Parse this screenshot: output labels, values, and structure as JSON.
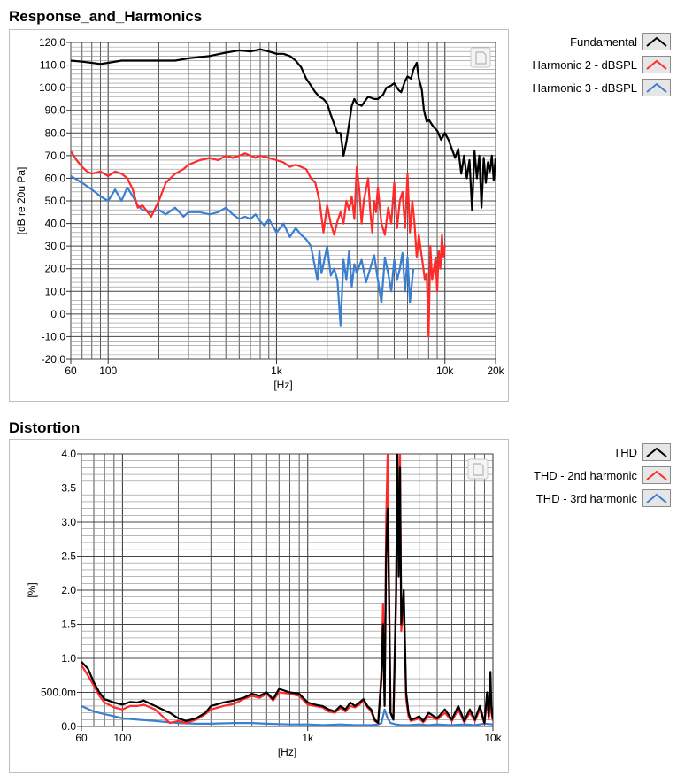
{
  "chart_data": [
    {
      "type": "line",
      "title": "Response_and_Harmonics",
      "xlabel": "[Hz]",
      "ylabel": "[dB re 20u Pa]",
      "xscale": "log",
      "xlim": [
        60,
        20000
      ],
      "ylim": [
        -20,
        120
      ],
      "xticks": [
        60,
        100,
        1000,
        10000,
        20000
      ],
      "xtick_labels": [
        "60",
        "100",
        "1k",
        "10k",
        "20k"
      ],
      "yticks": [
        -20,
        -10,
        0,
        10,
        20,
        30,
        40,
        50,
        60,
        70,
        80,
        90,
        100,
        110,
        120
      ],
      "ytick_labels": [
        "-20.0",
        "-10.0",
        "0.0",
        "10.0",
        "20.0",
        "30.0",
        "40.0",
        "50.0",
        "60.0",
        "70.0",
        "80.0",
        "90.0",
        "100.0",
        "110.0",
        "120.0"
      ],
      "grid": true,
      "legend_position": "right",
      "series": [
        {
          "name": "Fundamental",
          "color": "#000000",
          "x": [
            60,
            70,
            80,
            90,
            100,
            120,
            150,
            200,
            250,
            300,
            400,
            500,
            600,
            700,
            800,
            900,
            1000,
            1100,
            1200,
            1300,
            1400,
            1500,
            1600,
            1700,
            1800,
            1900,
            2000,
            2100,
            2200,
            2300,
            2400,
            2500,
            2600,
            2700,
            2800,
            2900,
            3000,
            3200,
            3500,
            3800,
            4000,
            4300,
            4500,
            4800,
            5000,
            5300,
            5500,
            5800,
            6000,
            6300,
            6500,
            6800,
            7000,
            7300,
            7500,
            7800,
            8000,
            8500,
            9000,
            9500,
            10000,
            10500,
            11000,
            11500,
            12000,
            12500,
            13000,
            13500,
            14000,
            14500,
            15000,
            15500,
            16000,
            16500,
            17000,
            17500,
            18000,
            18500,
            19000,
            19500,
            20000
          ],
          "y": [
            112,
            111.5,
            111,
            110.5,
            111,
            112,
            112,
            112,
            112,
            113,
            114,
            115.5,
            116.5,
            116,
            117,
            116,
            115,
            115,
            114,
            112,
            109,
            104,
            101,
            98,
            96,
            95,
            93,
            88,
            84,
            80,
            80,
            70,
            76,
            84,
            92,
            95,
            93,
            92,
            96,
            95,
            95,
            97,
            100,
            101,
            102,
            99,
            98,
            103,
            105,
            104,
            108,
            111,
            104,
            99,
            90,
            85,
            86,
            83,
            81,
            77,
            80,
            77,
            73,
            69,
            73,
            62,
            70,
            60,
            68,
            46,
            72,
            60,
            70,
            47,
            69,
            58,
            67,
            63,
            70,
            59,
            69
          ]
        },
        {
          "name": "Harmonic 2 - dBSPL",
          "color": "#ff2a2a",
          "x": [
            60,
            65,
            70,
            75,
            80,
            90,
            100,
            110,
            120,
            130,
            140,
            150,
            160,
            180,
            200,
            220,
            250,
            280,
            300,
            350,
            400,
            450,
            500,
            550,
            600,
            650,
            700,
            750,
            800,
            900,
            1000,
            1100,
            1200,
            1300,
            1400,
            1500,
            1600,
            1700,
            1800,
            1900,
            2000,
            2100,
            2200,
            2300,
            2400,
            2500,
            2600,
            2700,
            2800,
            2900,
            3000,
            3100,
            3200,
            3300,
            3400,
            3500,
            3600,
            3700,
            3800,
            3900,
            4000,
            4200,
            4400,
            4600,
            4800,
            5000,
            5200,
            5400,
            5600,
            5800,
            6000,
            6200,
            6400,
            6600,
            6800,
            7000,
            7200,
            7400,
            7600,
            7800,
            8000,
            8200,
            8400,
            8600,
            8800,
            9000,
            9200,
            9400,
            9600,
            9800,
            10000
          ],
          "y": [
            72,
            68,
            65,
            63,
            62,
            63,
            61,
            63,
            62,
            60,
            55,
            47,
            48,
            43,
            50,
            58,
            62,
            64,
            66,
            68,
            69,
            68,
            70,
            69,
            70,
            71,
            70,
            69,
            70,
            69,
            68,
            67,
            65,
            66,
            65,
            64,
            60,
            58,
            50,
            36,
            48,
            40,
            35,
            41,
            45,
            40,
            50,
            46,
            52,
            42,
            65,
            55,
            40,
            50,
            55,
            60,
            46,
            36,
            50,
            45,
            56,
            40,
            35,
            47,
            40,
            58,
            38,
            50,
            54,
            38,
            62,
            36,
            50,
            40,
            25,
            35,
            28,
            22,
            15,
            18,
            -10,
            30,
            15,
            20,
            25,
            10,
            28,
            20,
            35,
            25,
            30
          ]
        },
        {
          "name": "Harmonic 3 - dBSPL",
          "color": "#3a7fd0",
          "x": [
            60,
            70,
            80,
            90,
            100,
            110,
            120,
            130,
            140,
            150,
            160,
            180,
            200,
            220,
            250,
            280,
            300,
            350,
            400,
            450,
            500,
            550,
            600,
            650,
            700,
            750,
            800,
            850,
            900,
            1000,
            1100,
            1200,
            1300,
            1400,
            1500,
            1600,
            1700,
            1750,
            1800,
            1850,
            1900,
            2000,
            2100,
            2200,
            2300,
            2400,
            2500,
            2600,
            2700,
            2800,
            2900,
            3000,
            3200,
            3400,
            3600,
            3800,
            4000,
            4200,
            4400,
            4600,
            4800,
            5000,
            5200,
            5400,
            5600,
            5800,
            6000,
            6200,
            6500
          ],
          "y": [
            61,
            58,
            55,
            52,
            50,
            55,
            50,
            56,
            52,
            48,
            46,
            45,
            46,
            44,
            47,
            43,
            45,
            45,
            44,
            45,
            47,
            44,
            42,
            43,
            42,
            44,
            41,
            39,
            42,
            36,
            40,
            34,
            38,
            35,
            33,
            30,
            20,
            15,
            28,
            18,
            22,
            30,
            17,
            20,
            15,
            -5,
            24,
            15,
            28,
            12,
            22,
            18,
            24,
            14,
            20,
            26,
            15,
            5,
            25,
            18,
            10,
            24,
            15,
            20,
            27,
            10,
            25,
            5,
            20
          ]
        }
      ]
    },
    {
      "type": "line",
      "title": "Distortion",
      "xlabel": "[Hz]",
      "ylabel": "[%]",
      "xscale": "log",
      "xlim": [
        60,
        10000
      ],
      "ylim": [
        0,
        4
      ],
      "xticks": [
        60,
        100,
        1000,
        10000
      ],
      "xtick_labels": [
        "60",
        "100",
        "1k",
        "10k"
      ],
      "yticks": [
        0,
        0.5,
        1,
        1.5,
        2,
        2.5,
        3,
        3.5,
        4
      ],
      "ytick_labels": [
        "0.0",
        "500.0m",
        "1.0",
        "1.5",
        "2.0",
        "2.5",
        "3.0",
        "3.5",
        "4.0"
      ],
      "grid": true,
      "legend_position": "right",
      "series": [
        {
          "name": "THD",
          "color": "#000000",
          "x": [
            60,
            65,
            70,
            75,
            80,
            90,
            100,
            110,
            120,
            130,
            150,
            180,
            200,
            220,
            250,
            280,
            300,
            350,
            400,
            450,
            500,
            550,
            600,
            650,
            700,
            800,
            900,
            1000,
            1100,
            1200,
            1300,
            1400,
            1500,
            1600,
            1700,
            1800,
            1900,
            2000,
            2100,
            2200,
            2300,
            2400,
            2500,
            2550,
            2600,
            2650,
            2700,
            2750,
            2800,
            2900,
            3000,
            3050,
            3100,
            3150,
            3200,
            3300,
            3400,
            3500,
            3600,
            3800,
            4000,
            4200,
            4500,
            5000,
            5500,
            6000,
            6500,
            7000,
            7500,
            8000,
            8500,
            9000,
            9300,
            9500,
            9700,
            9800,
            10000
          ],
          "y": [
            0.95,
            0.85,
            0.65,
            0.5,
            0.4,
            0.35,
            0.32,
            0.36,
            0.35,
            0.38,
            0.3,
            0.2,
            0.12,
            0.08,
            0.12,
            0.2,
            0.3,
            0.35,
            0.38,
            0.42,
            0.48,
            0.45,
            0.5,
            0.4,
            0.55,
            0.5,
            0.48,
            0.35,
            0.32,
            0.3,
            0.25,
            0.22,
            0.3,
            0.25,
            0.35,
            0.3,
            0.35,
            0.4,
            0.3,
            0.25,
            0.1,
            0.05,
            0.7,
            1.5,
            0.3,
            2.5,
            3.2,
            1.8,
            0.2,
            0.1,
            2.0,
            4.0,
            2.2,
            3.8,
            1.5,
            2.0,
            0.5,
            0.2,
            0.1,
            0.12,
            0.15,
            0.08,
            0.2,
            0.12,
            0.25,
            0.1,
            0.3,
            0.08,
            0.25,
            0.1,
            0.3,
            0.05,
            0.5,
            0.15,
            0.8,
            0.3,
            0.1
          ]
        },
        {
          "name": "THD - 2nd harmonic",
          "color": "#ff2a2a",
          "x": [
            60,
            65,
            70,
            75,
            80,
            90,
            100,
            110,
            120,
            130,
            150,
            180,
            200,
            220,
            250,
            280,
            300,
            350,
            400,
            450,
            500,
            550,
            600,
            650,
            700,
            800,
            900,
            1000,
            1100,
            1200,
            1300,
            1400,
            1500,
            1600,
            1700,
            1800,
            1900,
            2000,
            2100,
            2200,
            2300,
            2400,
            2500,
            2550,
            2600,
            2650,
            2700,
            2750,
            2800,
            2900,
            3000,
            3050,
            3100,
            3150,
            3200,
            3300,
            3400,
            3500,
            3600,
            3800,
            4000,
            4200,
            4500,
            5000,
            5500,
            6000,
            6500,
            7000,
            7500,
            8000,
            8500,
            9000,
            9300,
            9500,
            9700,
            9800,
            10000
          ],
          "y": [
            0.9,
            0.75,
            0.6,
            0.45,
            0.35,
            0.28,
            0.25,
            0.3,
            0.3,
            0.32,
            0.25,
            0.05,
            0.08,
            0.05,
            0.1,
            0.18,
            0.25,
            0.3,
            0.33,
            0.4,
            0.45,
            0.42,
            0.48,
            0.38,
            0.5,
            0.48,
            0.45,
            0.32,
            0.3,
            0.28,
            0.22,
            0.2,
            0.27,
            0.22,
            0.3,
            0.28,
            0.32,
            0.38,
            0.28,
            0.22,
            0.08,
            0.05,
            0.8,
            1.8,
            0.4,
            3.0,
            4.0,
            2.0,
            0.2,
            0.1,
            1.8,
            4.0,
            2.5,
            4.0,
            1.4,
            1.8,
            0.4,
            0.15,
            0.08,
            0.1,
            0.12,
            0.06,
            0.15,
            0.1,
            0.2,
            0.08,
            0.25,
            0.06,
            0.2,
            0.08,
            0.25,
            0.04,
            0.4,
            0.1,
            0.6,
            0.2,
            0.08
          ]
        },
        {
          "name": "THD - 3rd harmonic",
          "color": "#3a7fd0",
          "x": [
            60,
            70,
            80,
            90,
            100,
            120,
            150,
            180,
            200,
            250,
            300,
            400,
            500,
            600,
            800,
            1000,
            1200,
            1500,
            1800,
            2000,
            2200,
            2400,
            2500,
            2550,
            2600,
            2700,
            2800,
            3000,
            3200,
            3500,
            4000,
            4500,
            5000,
            6000,
            7000,
            8000,
            9000,
            10000
          ],
          "y": [
            0.3,
            0.22,
            0.18,
            0.15,
            0.12,
            0.1,
            0.08,
            0.06,
            0.05,
            0.04,
            0.04,
            0.05,
            0.05,
            0.04,
            0.03,
            0.03,
            0.02,
            0.03,
            0.02,
            0.02,
            0.02,
            0.03,
            0.05,
            0.15,
            0.25,
            0.12,
            0.05,
            0.03,
            0.02,
            0.02,
            0.03,
            0.02,
            0.03,
            0.02,
            0.03,
            0.02,
            0.04,
            0.03
          ]
        }
      ]
    }
  ]
}
